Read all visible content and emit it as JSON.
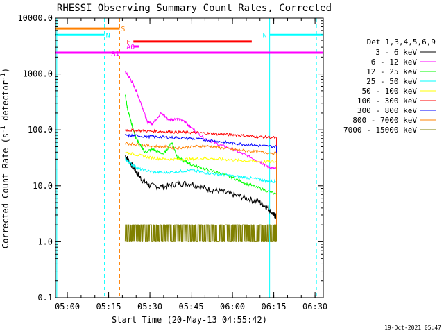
{
  "chart_data": {
    "type": "line",
    "title": "RHESSI Observing Summary Count Rates, Corrected",
    "xlabel": "Start Time (20-May-13 04:55:42)",
    "ylabel_prefix": "Corrected Count Rate (s",
    "ylabel_sup": "-1",
    "ylabel_suffix": " detector",
    "ylabel_end": ")",
    "y_scale": "log",
    "ylim": [
      0.1,
      10000
    ],
    "xlim": [
      "04:55:42",
      "06:33:00"
    ],
    "x_ticks": [
      "05:00",
      "05:15",
      "05:30",
      "05:45",
      "06:00",
      "06:15",
      "06:30"
    ],
    "y_ticks": [
      "0.1",
      "1.0",
      "10.0",
      "100.0",
      "1000.0",
      "10000.0"
    ],
    "legend_title": "Det 1,3,4,5,6,9",
    "legend_position": "right",
    "series": [
      {
        "name": "3 - 6 keV",
        "color": "#000000",
        "t": [
          "05:21",
          "05:23",
          "05:25",
          "05:27",
          "05:30",
          "05:35",
          "05:40",
          "05:45",
          "05:50",
          "05:55",
          "06:00",
          "06:05",
          "06:10",
          "06:13",
          "06:15",
          "06:16"
        ],
        "values": [
          35,
          25,
          18,
          13,
          10,
          9.5,
          11,
          11,
          9,
          8,
          7,
          6,
          5,
          4,
          3,
          2.8
        ]
      },
      {
        "name": "6 - 12 keV",
        "color": "#ff00ff",
        "t": [
          "05:21",
          "05:23",
          "05:25",
          "05:27",
          "05:29",
          "05:31",
          "05:34",
          "05:37",
          "05:40",
          "05:43",
          "05:45",
          "05:50",
          "05:55",
          "06:00",
          "06:05",
          "06:10",
          "06:13",
          "06:16"
        ],
        "values": [
          1100,
          800,
          500,
          280,
          140,
          130,
          200,
          150,
          160,
          135,
          110,
          70,
          55,
          45,
          35,
          27,
          22,
          20
        ]
      },
      {
        "name": "12 - 25 keV",
        "color": "#00ff00",
        "t": [
          "05:21",
          "05:22",
          "05:24",
          "05:25",
          "05:27",
          "05:28",
          "05:31",
          "05:35",
          "05:38",
          "05:40",
          "05:43",
          "05:45",
          "05:50",
          "05:55",
          "06:00",
          "06:05",
          "06:10",
          "06:16"
        ],
        "values": [
          420,
          220,
          100,
          70,
          50,
          40,
          45,
          37,
          60,
          32,
          27,
          24,
          20,
          17,
          14,
          11,
          9,
          7
        ]
      },
      {
        "name": "25 - 50 keV",
        "color": "#00ffff",
        "t": [
          "05:21",
          "05:23",
          "05:26",
          "05:30",
          "05:35",
          "05:40",
          "05:45",
          "05:50",
          "05:55",
          "06:00",
          "06:05",
          "06:10",
          "06:13",
          "06:16"
        ],
        "values": [
          30,
          25,
          20,
          18,
          17,
          18,
          19,
          17,
          16,
          15,
          14,
          13,
          12,
          12
        ]
      },
      {
        "name": "50 - 100 keV",
        "color": "#ffff00",
        "t": [
          "05:21",
          "05:25",
          "05:30",
          "05:35",
          "05:40",
          "05:45",
          "05:50",
          "05:55",
          "06:00",
          "06:05",
          "06:10",
          "06:16"
        ],
        "values": [
          40,
          36,
          32,
          30,
          30,
          30,
          31,
          30,
          29,
          28,
          27,
          27
        ]
      },
      {
        "name": "100 - 300 keV",
        "color": "#ff0000",
        "t": [
          "05:21",
          "05:25",
          "05:30",
          "05:35",
          "05:40",
          "05:45",
          "05:50",
          "05:55",
          "06:00",
          "06:05",
          "06:10",
          "06:16"
        ],
        "values": [
          100,
          97,
          95,
          93,
          91,
          90,
          87,
          84,
          82,
          78,
          75,
          72
        ]
      },
      {
        "name": "300 - 800 keV",
        "color": "#0000ff",
        "t": [
          "05:21",
          "05:25",
          "05:30",
          "05:35",
          "05:40",
          "05:45",
          "05:50",
          "05:55",
          "06:00",
          "06:05",
          "06:10",
          "06:16"
        ],
        "values": [
          80,
          78,
          76,
          74,
          72,
          70,
          66,
          62,
          58,
          55,
          52,
          50
        ]
      },
      {
        "name": "800 - 7000 keV",
        "color": "#ff8000",
        "t": [
          "05:21",
          "05:25",
          "05:30",
          "05:35",
          "05:40",
          "05:45",
          "05:50",
          "05:55",
          "06:00",
          "06:05",
          "06:10",
          "06:16"
        ],
        "values": [
          58,
          55,
          52,
          50,
          47,
          50,
          52,
          48,
          45,
          42,
          40,
          38
        ]
      },
      {
        "name": "7000 - 15000 keV",
        "color": "#808000",
        "t": [
          "05:21",
          "05:23",
          "05:25",
          "05:27",
          "05:29",
          "05:31",
          "05:33",
          "05:35",
          "05:37",
          "05:39",
          "05:41",
          "05:43",
          "05:45",
          "05:47",
          "05:49",
          "05:51",
          "05:53",
          "05:55",
          "05:57",
          "05:59",
          "06:01",
          "06:03",
          "06:05",
          "06:07",
          "06:09",
          "06:11",
          "06:13",
          "06:15",
          "06:16"
        ],
        "values": [
          1,
          2,
          1,
          2,
          1,
          2,
          1,
          2,
          1,
          2,
          1,
          2,
          1,
          2,
          1,
          2,
          1,
          2,
          1,
          2,
          1,
          2,
          1,
          2,
          1,
          2,
          1,
          2,
          1
        ]
      }
    ],
    "state_bars": [
      {
        "label": "S",
        "color": "#ff8000",
        "t_start": "04:55:42",
        "t_end": "05:19:00",
        "y": 6500
      },
      {
        "label": "N",
        "color": "#00ffff",
        "t_start": "04:55:42",
        "t_end": "05:13:30",
        "y": 5000
      },
      {
        "label": "N",
        "color": "#00ffff",
        "t_start": "06:13:30",
        "t_end": "06:33:00",
        "y": 5000
      },
      {
        "label": "F",
        "color": "#ff0000",
        "t_start": "05:24:00",
        "t_end": "06:07:00",
        "y": 3800
      },
      {
        "label": "A0",
        "color": "#ff00ff",
        "t_start": "05:24:00",
        "t_end": "05:26:00",
        "y": 3100
      },
      {
        "label": "A1",
        "color": "#ff00ff",
        "t_start": "04:55:42",
        "t_end": "06:33:00",
        "y": 2400
      }
    ],
    "vertical_lines": [
      {
        "t": "04:56:10",
        "color": "#00ffff",
        "style": "solid"
      },
      {
        "t": "05:13:30",
        "color": "#00ffff",
        "style": "dashed"
      },
      {
        "t": "05:19:00",
        "color": "#ff8000",
        "style": "dashed"
      },
      {
        "t": "06:13:30",
        "color": "#00ffff",
        "style": "solid"
      },
      {
        "t": "06:30:30",
        "color": "#00ffff",
        "style": "dashed"
      }
    ],
    "grid": false
  },
  "timestamp": "19-Oct-2021 05:47"
}
